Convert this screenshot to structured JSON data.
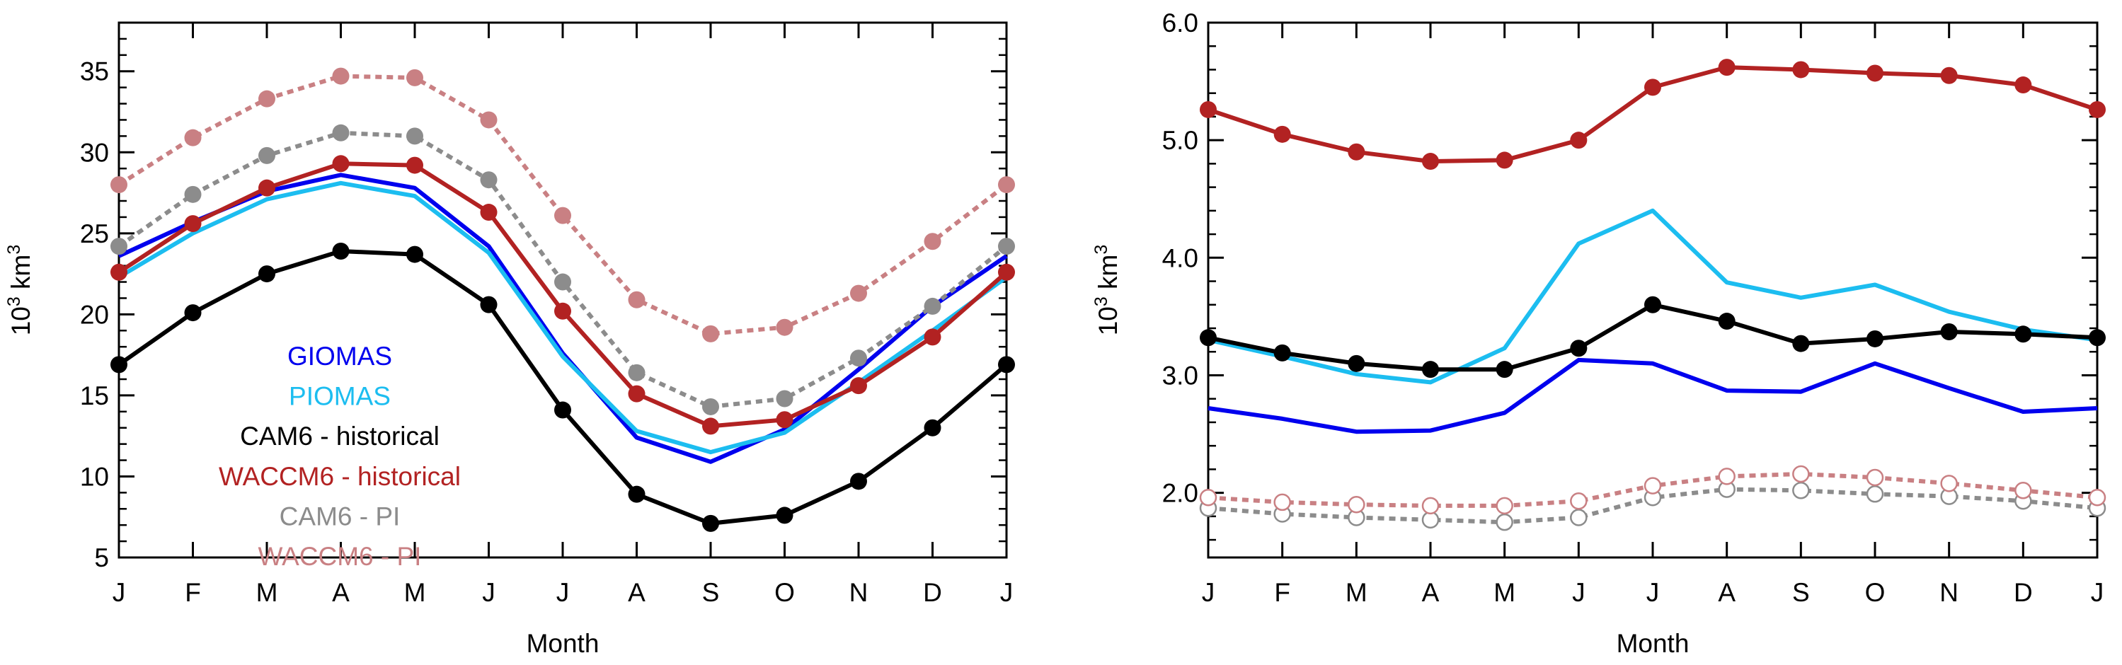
{
  "chart_data": [
    {
      "type": "line",
      "x": [
        "J",
        "F",
        "M",
        "A",
        "M",
        "J",
        "J",
        "A",
        "S",
        "O",
        "N",
        "D",
        "J"
      ],
      "xlabel": "Month",
      "ylabel": "10^3 km^3",
      "ylim": [
        5,
        38
      ],
      "yticks": [
        "5",
        "10",
        "15",
        "20",
        "25",
        "30",
        "35"
      ],
      "ytick_values": [
        5,
        10,
        15,
        20,
        25,
        30,
        35
      ],
      "legend": [
        {
          "name": "GIOMAS",
          "color": "#0000ee"
        },
        {
          "name": "PIOMAS",
          "color": "#1cbdf0"
        },
        {
          "name": "CAM6 - historical",
          "color": "#000000"
        },
        {
          "name": "WACCM6 - historical",
          "color": "#b22222"
        },
        {
          "name": "CAM6 - PI",
          "color": "#8c8c8c"
        },
        {
          "name": "WACCM6 - PI",
          "color": "#c98083"
        }
      ],
      "series": [
        {
          "name": "GIOMAS",
          "color": "#0000ee",
          "dash": false,
          "marker": "none",
          "values": [
            23.6,
            25.7,
            27.6,
            28.6,
            27.8,
            24.2,
            17.6,
            12.4,
            10.9,
            12.9,
            16.6,
            20.5,
            23.6
          ]
        },
        {
          "name": "PIOMAS",
          "color": "#1cbdf0",
          "dash": false,
          "marker": "none",
          "values": [
            22.3,
            25.0,
            27.1,
            28.1,
            27.3,
            23.8,
            17.4,
            12.8,
            11.5,
            12.7,
            15.8,
            19.0,
            22.3
          ]
        },
        {
          "name": "CAM6 - historical",
          "color": "#000000",
          "dash": false,
          "marker": "filled",
          "values": [
            16.9,
            20.1,
            22.5,
            23.9,
            23.7,
            20.6,
            14.1,
            8.9,
            7.1,
            7.6,
            9.7,
            13.0,
            16.9
          ]
        },
        {
          "name": "WACCM6 - historical",
          "color": "#b22222",
          "dash": false,
          "marker": "filled",
          "values": [
            22.6,
            25.6,
            27.8,
            29.3,
            29.2,
            26.3,
            20.2,
            15.1,
            13.1,
            13.5,
            15.6,
            18.6,
            22.6
          ]
        },
        {
          "name": "CAM6 - PI",
          "color": "#8c8c8c",
          "dash": true,
          "marker": "filled",
          "values": [
            24.2,
            27.4,
            29.8,
            31.2,
            31.0,
            28.3,
            22.0,
            16.4,
            14.3,
            14.8,
            17.3,
            20.5,
            24.2
          ]
        },
        {
          "name": "WACCM6 - PI",
          "color": "#c98083",
          "dash": true,
          "marker": "filled",
          "values": [
            28.0,
            30.9,
            33.3,
            34.7,
            34.6,
            32.0,
            26.1,
            20.9,
            18.8,
            19.2,
            21.3,
            24.5,
            28.0
          ]
        }
      ]
    },
    {
      "type": "line",
      "x": [
        "J",
        "F",
        "M",
        "A",
        "M",
        "J",
        "J",
        "A",
        "S",
        "O",
        "N",
        "D",
        "J"
      ],
      "xlabel": "Month",
      "ylabel": "10^3 km^3",
      "ylim": [
        1.45,
        6.0
      ],
      "yticks": [
        "2.0",
        "3.0",
        "4.0",
        "5.0",
        "6.0"
      ],
      "ytick_values": [
        2.0,
        3.0,
        4.0,
        5.0,
        6.0
      ],
      "series": [
        {
          "name": "GIOMAS",
          "color": "#0000ee",
          "dash": false,
          "marker": "none",
          "values": [
            2.72,
            2.63,
            2.52,
            2.53,
            2.68,
            3.13,
            3.1,
            2.87,
            2.86,
            3.1,
            2.89,
            2.69,
            2.72
          ]
        },
        {
          "name": "PIOMAS",
          "color": "#1cbdf0",
          "dash": false,
          "marker": "none",
          "values": [
            3.3,
            3.16,
            3.01,
            2.94,
            3.23,
            4.12,
            4.4,
            3.79,
            3.66,
            3.77,
            3.54,
            3.39,
            3.3
          ]
        },
        {
          "name": "CAM6 - historical",
          "color": "#000000",
          "dash": false,
          "marker": "filled",
          "values": [
            3.32,
            3.19,
            3.1,
            3.05,
            3.05,
            3.23,
            3.6,
            3.46,
            3.27,
            3.31,
            3.37,
            3.35,
            3.32
          ]
        },
        {
          "name": "WACCM6 - historical",
          "color": "#b22222",
          "dash": false,
          "marker": "filled",
          "values": [
            5.26,
            5.05,
            4.9,
            4.82,
            4.83,
            5.0,
            5.45,
            5.62,
            5.6,
            5.57,
            5.55,
            5.47,
            5.26
          ]
        },
        {
          "name": "CAM6 - PI",
          "color": "#8c8c8c",
          "dash": true,
          "marker": "open",
          "values": [
            1.87,
            1.82,
            1.79,
            1.77,
            1.75,
            1.79,
            1.96,
            2.03,
            2.02,
            1.99,
            1.97,
            1.93,
            1.87
          ]
        },
        {
          "name": "WACCM6 - PI",
          "color": "#c98083",
          "dash": true,
          "marker": "open",
          "values": [
            1.96,
            1.92,
            1.9,
            1.89,
            1.89,
            1.93,
            2.06,
            2.14,
            2.16,
            2.13,
            2.08,
            2.02,
            1.96
          ]
        }
      ]
    }
  ]
}
